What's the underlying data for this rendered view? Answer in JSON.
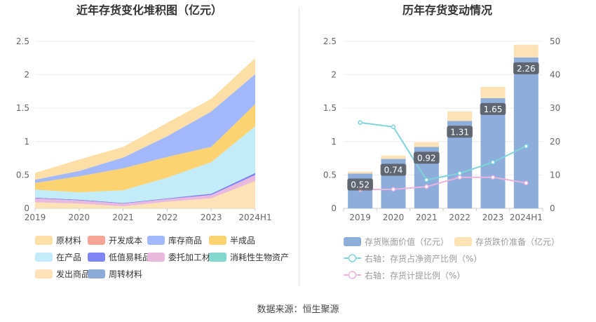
{
  "source": "数据来源：恒生聚源",
  "chart_data": [
    {
      "type": "area",
      "title": "近年存货变化堆积图（亿元）",
      "categories": [
        "2019",
        "2020",
        "2021",
        "2022",
        "2023",
        "2024H1"
      ],
      "ylim": [
        0,
        2.5
      ],
      "yticks": [
        "0",
        "0.5",
        "1",
        "1.5",
        "2",
        "2.5"
      ],
      "grid": true,
      "legend_position": "bottom",
      "series": [
        {
          "name": "原材料",
          "color": "#fcdfa6",
          "values": [
            0.1,
            0.17,
            0.16,
            0.2,
            0.19,
            0.24
          ]
        },
        {
          "name": "开发成本",
          "color": "#f7a497",
          "values": [
            0,
            0,
            0,
            0,
            0,
            0
          ]
        },
        {
          "name": "库存商品",
          "color": "#a3b8fb",
          "values": [
            0.05,
            0.08,
            0.16,
            0.31,
            0.53,
            0.45
          ]
        },
        {
          "name": "半成品",
          "color": "#fdd271",
          "values": [
            0.1,
            0.24,
            0.33,
            0.31,
            0.23,
            0.33
          ]
        },
        {
          "name": "在产品",
          "color": "#c3ecfa",
          "values": [
            0.12,
            0.11,
            0.19,
            0.31,
            0.47,
            0.7
          ]
        },
        {
          "name": "低值易耗品",
          "color": "#7f84f7",
          "values": [
            0.01,
            0.01,
            0.01,
            0.01,
            0.02,
            0.03
          ]
        },
        {
          "name": "委托加工材料",
          "color": "#eab9de",
          "values": [
            0.06,
            0.05,
            0.04,
            0.04,
            0.05,
            0.09
          ]
        },
        {
          "name": "消耗性生物资产",
          "color": "#82d8cf",
          "values": [
            0,
            0,
            0,
            0,
            0,
            0
          ]
        },
        {
          "name": "发出商品",
          "color": "#fde2b5",
          "values": [
            0.09,
            0.07,
            0.03,
            0.1,
            0.15,
            0.41
          ]
        },
        {
          "name": "周转材料",
          "color": "#8eaad8",
          "values": [
            0,
            0,
            0,
            0,
            0,
            0
          ]
        }
      ],
      "stack_order": [
        "发出商品",
        "委托加工材料",
        "低值易耗品",
        "在产品",
        "半成品",
        "库存商品",
        "原材料"
      ]
    },
    {
      "type": "bar",
      "title": "历年存货变动情况",
      "categories": [
        "2019",
        "2020",
        "2021",
        "2022",
        "2023",
        "2024H1"
      ],
      "ylim": [
        0,
        2.5
      ],
      "yticks": [
        "0",
        "0.5",
        "1",
        "1.5",
        "2",
        "2.5"
      ],
      "y2lim": [
        0,
        50
      ],
      "y2ticks": [
        "0",
        "10",
        "20",
        "30",
        "40",
        "50"
      ],
      "grid": true,
      "legend_position": "bottom",
      "series": [
        {
          "name": "存货账面价值（亿元）",
          "type": "bar",
          "color": "#8eaddb",
          "values": [
            0.52,
            0.74,
            0.92,
            1.31,
            1.65,
            2.26
          ],
          "labels": [
            "0.52",
            "0.74",
            "0.92",
            "1.31",
            "1.65",
            "2.26"
          ]
        },
        {
          "name": "存货跌价准备（亿元）",
          "type": "bar",
          "color": "#fde2b5",
          "values": [
            0.03,
            0.05,
            0.07,
            0.14,
            0.17,
            0.19
          ]
        },
        {
          "name": "右轴：存货占净资产比例（%）",
          "type": "line",
          "axis": "right",
          "color": "#7fd3da",
          "values": [
            25.7,
            24.4,
            8.5,
            10.5,
            13.8,
            18.6
          ]
        },
        {
          "name": "右轴：存货计提比例（%）",
          "type": "line",
          "axis": "right",
          "color": "#ebb4de",
          "values": [
            5.6,
            5.7,
            6.5,
            9.3,
            9.3,
            7.6
          ]
        }
      ]
    }
  ]
}
